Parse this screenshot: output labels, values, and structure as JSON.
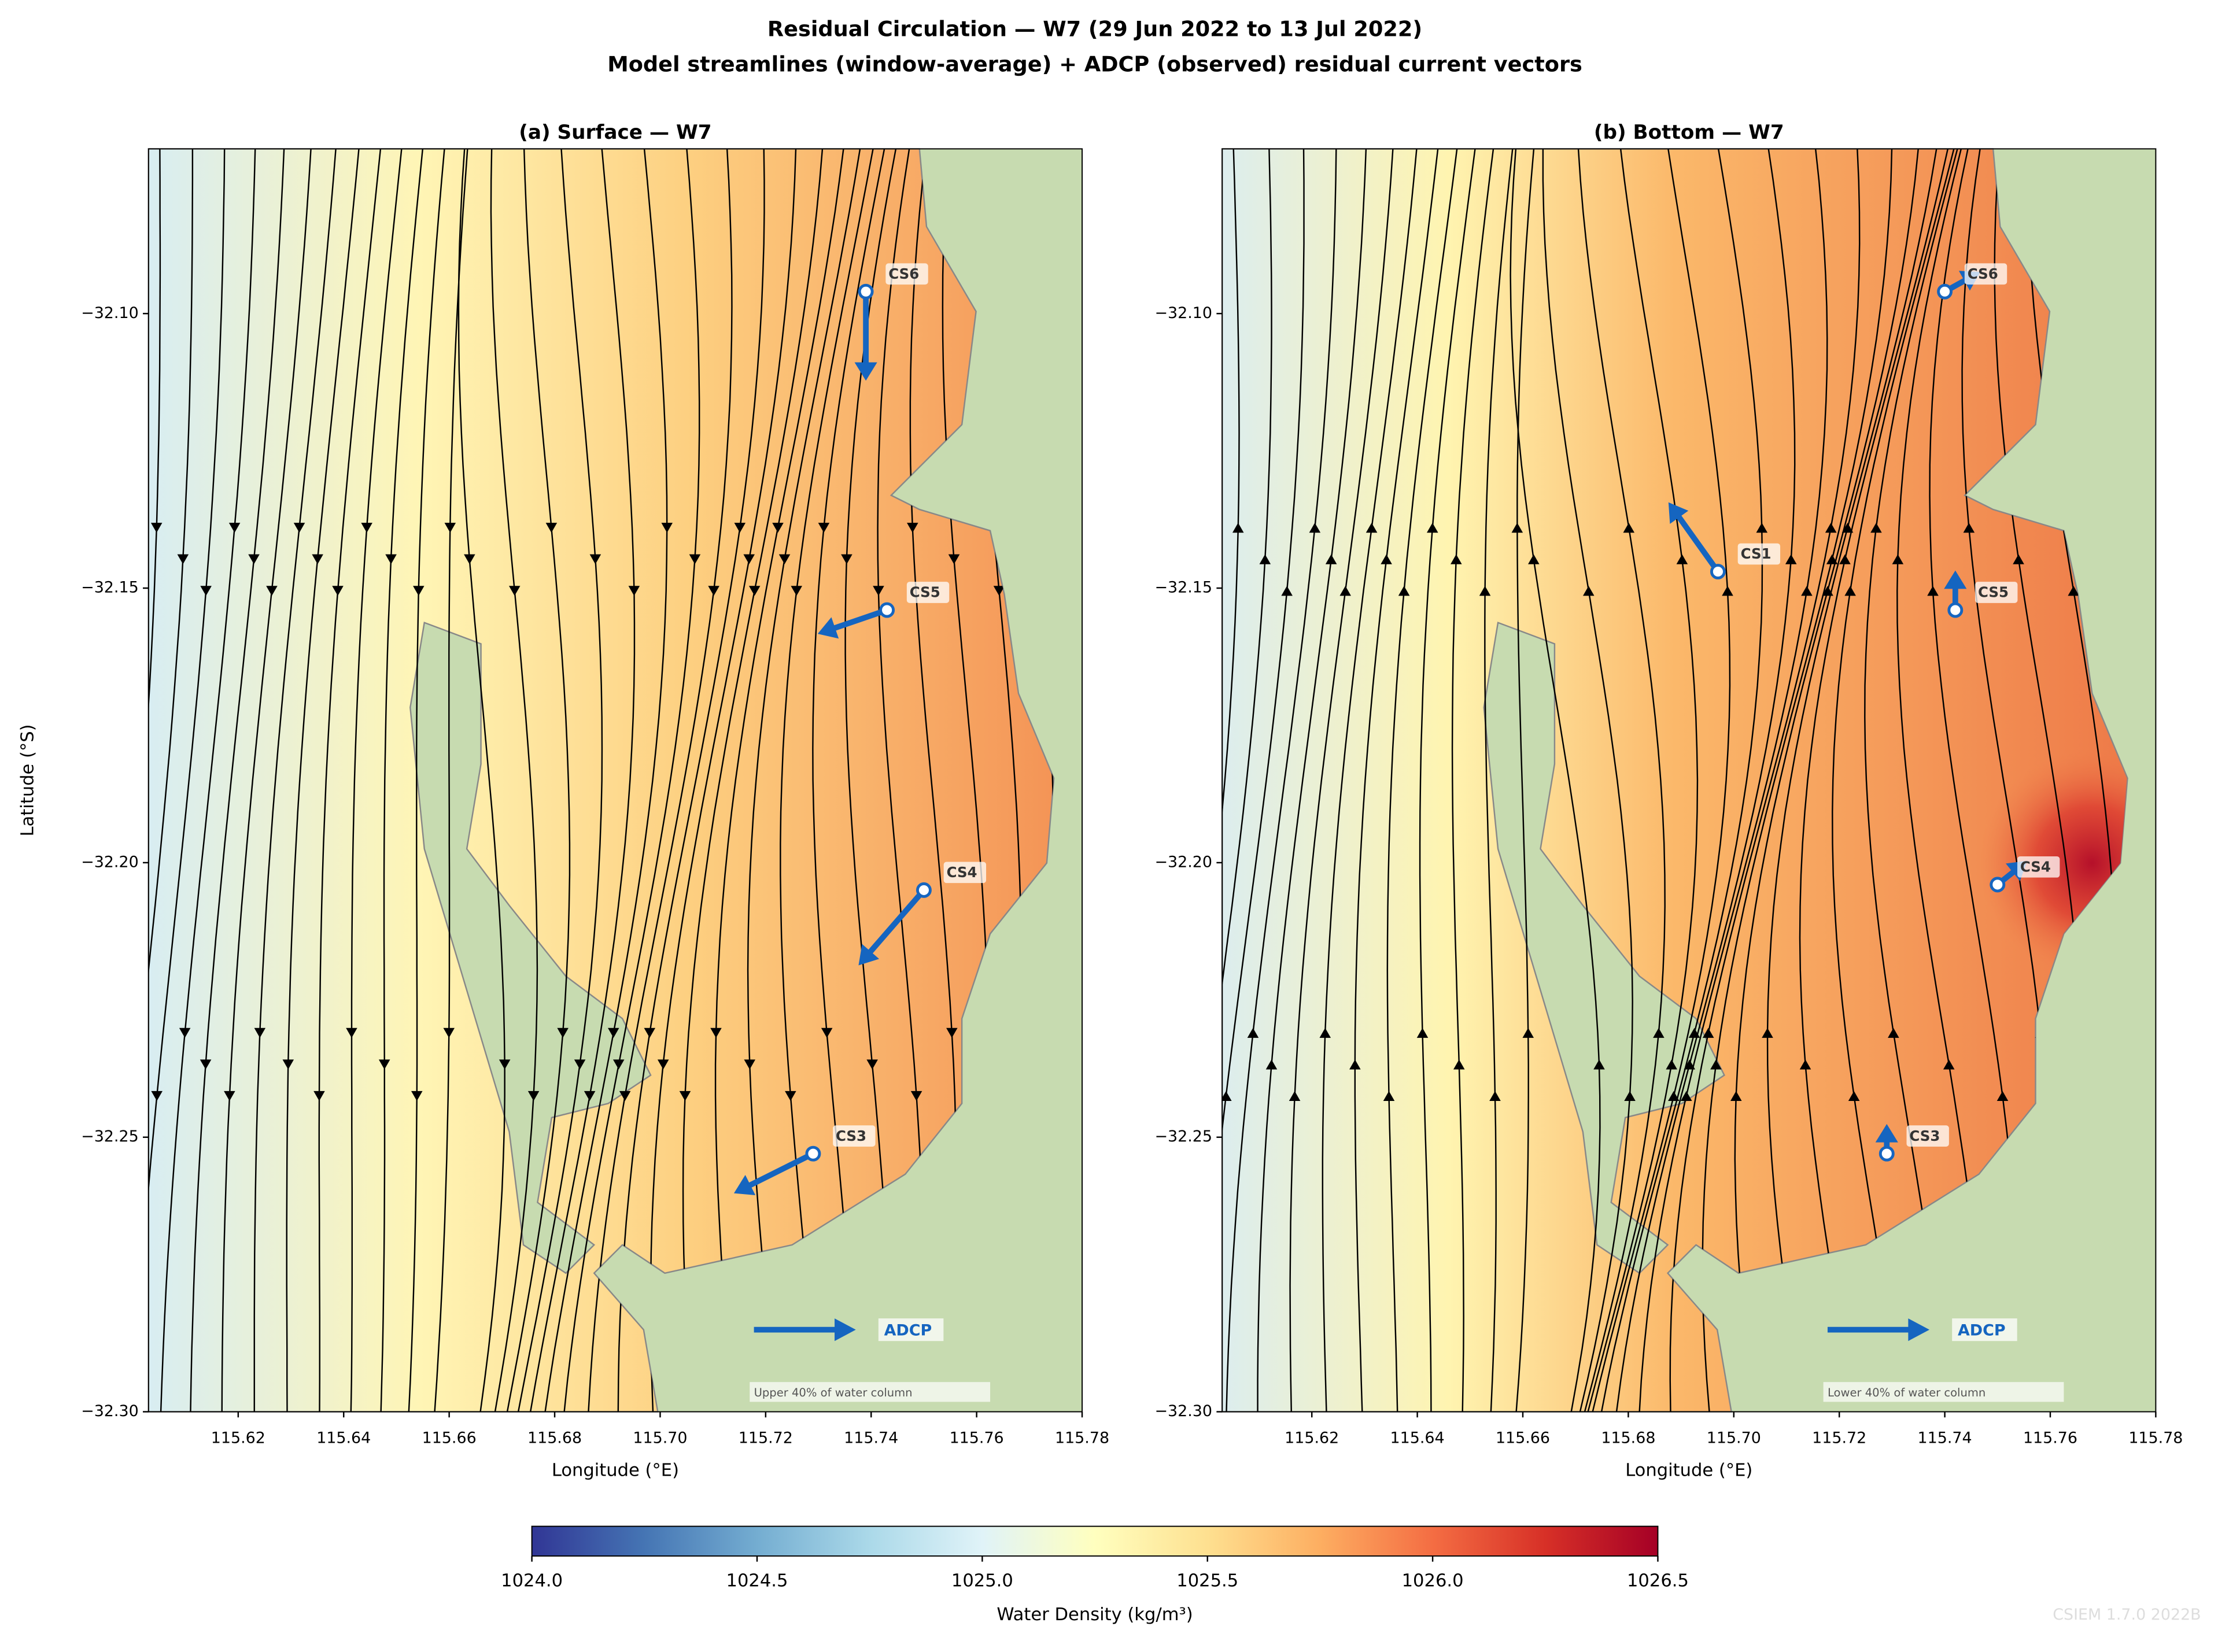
{
  "figure": {
    "title": "Residual Circulation — W7  (29 Jun 2022 to 13 Jul 2022)",
    "subtitle": "Model streamlines (window-average) + ADCP (observed) residual current vectors",
    "watermark": "CSIEM 1.7.0 2022B"
  },
  "colorbar": {
    "label": "Water Density (kg/m³)",
    "lim": [
      1024.0,
      1026.5
    ],
    "ticks": [
      {
        "value": 1024.0,
        "label": "1024.0"
      },
      1024.5,
      {
        "value": 1025.0,
        "label": "1025.0"
      },
      1025.5,
      {
        "value": 1026.0,
        "label": "1026.0"
      },
      1026.5
    ],
    "colors": [
      "#313695",
      "#4575b4",
      "#74add1",
      "#abd9e9",
      "#e0f3f8",
      "#ffffbf",
      "#fee090",
      "#fdae61",
      "#f46d43",
      "#d73027",
      "#a50026"
    ]
  },
  "chart_data": [
    {
      "type": "quiver",
      "title": "(a) Surface — W7",
      "xlabel": "Longitude (°E)",
      "ylabel": "Latitude (°S)",
      "xlim": [
        115.603,
        115.78
      ],
      "ylim": [
        -32.3,
        -32.07
      ],
      "xticks": [
        115.62,
        115.64,
        115.66,
        115.68,
        {
          "value": 115.7,
          "label": "115.70"
        },
        115.72,
        115.74,
        115.76,
        115.78
      ],
      "yticks": [
        {
          "value": -32.1,
          "label": "−32.10"
        },
        {
          "value": -32.15,
          "label": "−32.15"
        },
        {
          "value": -32.2,
          "label": "−32.20"
        },
        {
          "value": -32.25,
          "label": "−32.25"
        },
        {
          "value": -32.3,
          "label": "−32.30"
        }
      ],
      "arrow_color": "#1565c0",
      "legend_label": "ADCP",
      "note": "Upper 40% of water column",
      "stations": [
        {
          "name": "CS6",
          "lon": 115.739,
          "lat": -32.096,
          "u": 0.0,
          "v": -0.45
        },
        {
          "name": "CS5",
          "lon": 115.743,
          "lat": -32.154,
          "u": -0.35,
          "v": -0.12
        },
        {
          "name": "CS4",
          "lon": 115.75,
          "lat": -32.205,
          "u": -0.33,
          "v": -0.38
        },
        {
          "name": "CS3",
          "lon": 115.729,
          "lat": -32.253,
          "u": -0.4,
          "v": -0.2
        }
      ]
    },
    {
      "type": "quiver",
      "title": "(b) Bottom — W7",
      "xlabel": "Longitude (°E)",
      "xlim": [
        115.603,
        115.78
      ],
      "ylim": [
        -32.3,
        -32.07
      ],
      "xticks": [
        115.62,
        115.64,
        115.66,
        115.68,
        {
          "value": 115.7,
          "label": "115.70"
        },
        115.72,
        115.74,
        115.76,
        115.78
      ],
      "yticks": [
        {
          "value": -32.1,
          "label": "−32.10"
        },
        {
          "value": -32.15,
          "label": "−32.15"
        },
        {
          "value": -32.2,
          "label": "−32.20"
        },
        {
          "value": -32.25,
          "label": "−32.25"
        },
        {
          "value": -32.3,
          "label": "−32.30"
        }
      ],
      "arrow_color": "#1565c0",
      "legend_label": "ADCP",
      "note": "Lower 40% of water column",
      "stations": [
        {
          "name": "CS6",
          "lon": 115.74,
          "lat": -32.096,
          "u": 0.18,
          "v": 0.1
        },
        {
          "name": "CS1",
          "lon": 115.697,
          "lat": -32.147,
          "u": -0.25,
          "v": 0.35
        },
        {
          "name": "CS5",
          "lon": 115.742,
          "lat": -32.154,
          "u": 0.0,
          "v": 0.2
        },
        {
          "name": "CS4",
          "lon": 115.75,
          "lat": -32.204,
          "u": 0.15,
          "v": 0.12
        },
        {
          "name": "CS3",
          "lon": 115.729,
          "lat": -32.253,
          "u": 0.0,
          "v": 0.15
        }
      ]
    }
  ]
}
